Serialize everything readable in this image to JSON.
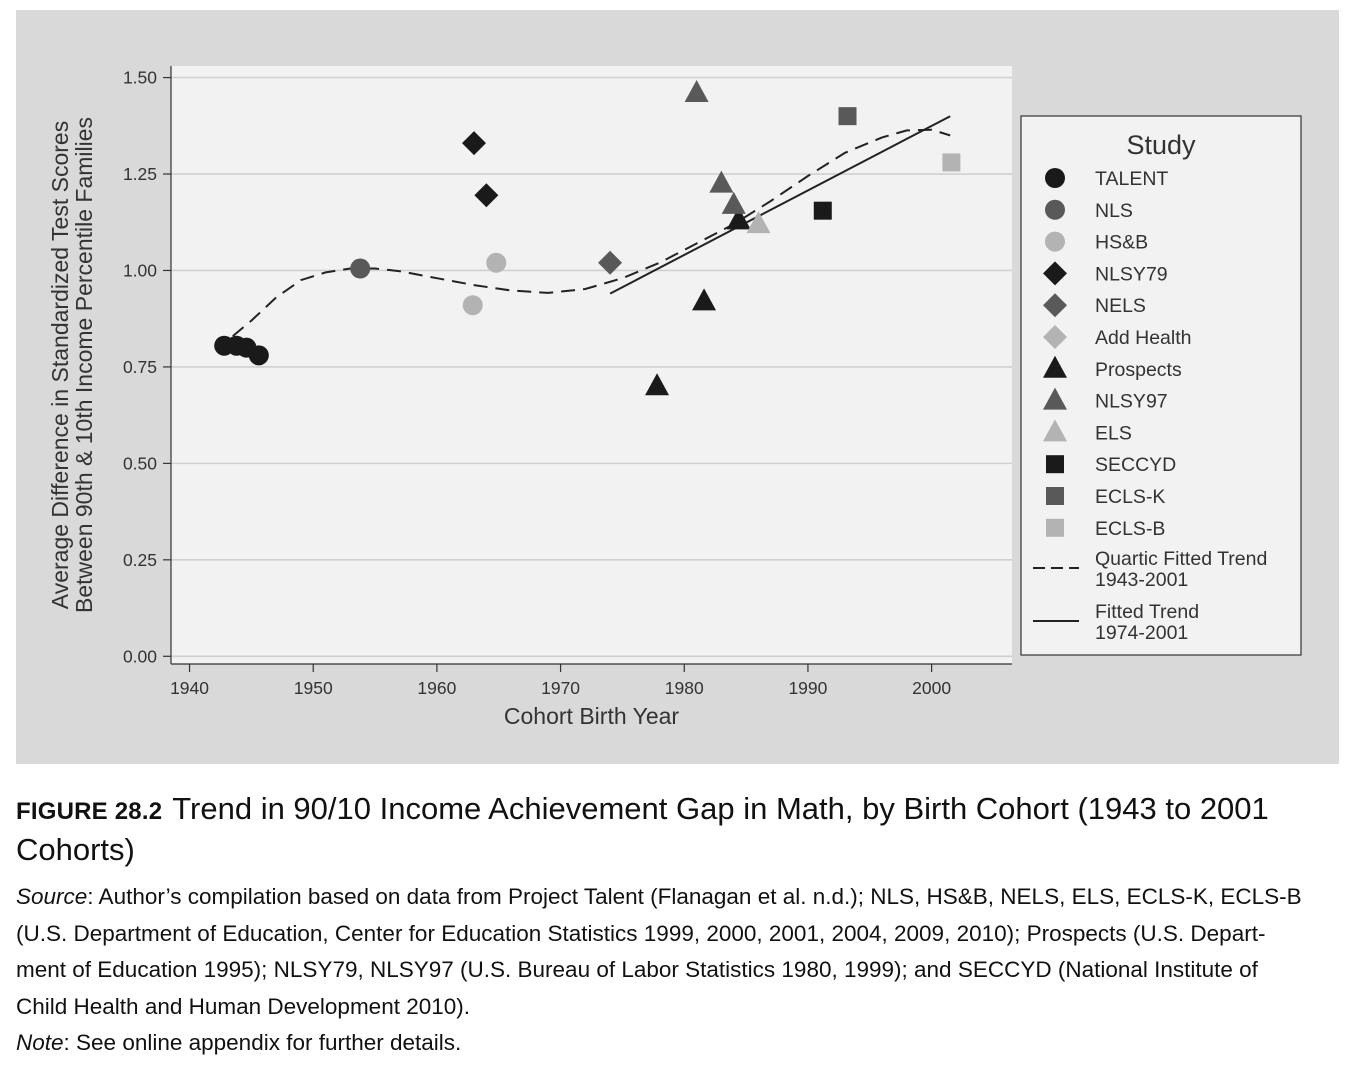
{
  "chart_data": {
    "type": "scatter",
    "xlabel": "Cohort Birth Year",
    "ylabel_line1": "Average Difference in Standardized Test Scores",
    "ylabel_line2": "Between 90th & 10th Income Percentile Families",
    "xlim": [
      1938.5,
      2006.5
    ],
    "ylim": [
      -0.02,
      1.53
    ],
    "x_ticks": [
      1940,
      1950,
      1960,
      1970,
      1980,
      1990,
      2000
    ],
    "y_ticks": [
      {
        "value": 0.0,
        "label": "0.00"
      },
      {
        "value": 0.25,
        "label": "0.25"
      },
      {
        "value": 0.5,
        "label": "0.50"
      },
      {
        "value": 0.75,
        "label": "0.75"
      },
      {
        "value": 1.0,
        "label": "1.00"
      },
      {
        "value": 1.25,
        "label": "1.25"
      },
      {
        "value": 1.5,
        "label": "1.50"
      }
    ],
    "grid": true,
    "legend": {
      "title": "Study",
      "placement": "right"
    },
    "series": [
      {
        "name": "TALENT",
        "marker": "circle",
        "color": "#1a1a1a",
        "points": [
          [
            1942.8,
            0.805
          ],
          [
            1943.8,
            0.805
          ],
          [
            1944.6,
            0.8
          ],
          [
            1945.6,
            0.78
          ]
        ]
      },
      {
        "name": "NLS",
        "marker": "circle",
        "color": "#595959",
        "points": [
          [
            1953.8,
            1.005
          ]
        ]
      },
      {
        "name": "HS&B",
        "marker": "circle",
        "color": "#b3b3b3",
        "points": [
          [
            1962.9,
            0.91
          ],
          [
            1964.8,
            1.02
          ]
        ]
      },
      {
        "name": "NLSY79",
        "marker": "diamond",
        "color": "#1a1a1a",
        "points": [
          [
            1963.0,
            1.33
          ],
          [
            1964.0,
            1.195
          ]
        ]
      },
      {
        "name": "NELS",
        "marker": "diamond",
        "color": "#595959",
        "points": [
          [
            1974.0,
            1.02
          ]
        ]
      },
      {
        "name": "Add Health",
        "marker": "diamond",
        "color": "#b3b3b3",
        "points": []
      },
      {
        "name": "Prospects",
        "marker": "triangle",
        "color": "#1a1a1a",
        "points": [
          [
            1977.8,
            0.7
          ],
          [
            1981.6,
            0.92
          ],
          [
            1984.4,
            1.13
          ]
        ]
      },
      {
        "name": "NLSY97",
        "marker": "triangle",
        "color": "#595959",
        "points": [
          [
            1981.0,
            1.46
          ],
          [
            1983.0,
            1.225
          ],
          [
            1984.0,
            1.17
          ]
        ]
      },
      {
        "name": "ELS",
        "marker": "triangle",
        "color": "#b3b3b3",
        "points": [
          [
            1986.0,
            1.12
          ]
        ]
      },
      {
        "name": "SECCYD",
        "marker": "square",
        "color": "#1a1a1a",
        "points": [
          [
            1991.2,
            1.155
          ]
        ]
      },
      {
        "name": "ECLS-K",
        "marker": "square",
        "color": "#595959",
        "points": [
          [
            1993.2,
            1.4
          ]
        ]
      },
      {
        "name": "ECLS-B",
        "marker": "square",
        "color": "#b3b3b3",
        "points": [
          [
            2001.6,
            1.28
          ]
        ]
      }
    ],
    "trend_lines": [
      {
        "name_line1": "Quartic Fitted Trend",
        "name_line2": "1943-2001",
        "style": "dashed",
        "points": [
          [
            1943.5,
            0.83
          ],
          [
            1945,
            0.87
          ],
          [
            1947,
            0.93
          ],
          [
            1949,
            0.975
          ],
          [
            1951,
            0.995
          ],
          [
            1953,
            1.005
          ],
          [
            1955,
            1.005
          ],
          [
            1957,
            0.998
          ],
          [
            1960,
            0.98
          ],
          [
            1963,
            0.962
          ],
          [
            1966,
            0.948
          ],
          [
            1969,
            0.942
          ],
          [
            1972,
            0.952
          ],
          [
            1975,
            0.98
          ],
          [
            1978,
            1.02
          ],
          [
            1981,
            1.07
          ],
          [
            1984,
            1.12
          ],
          [
            1987,
            1.18
          ],
          [
            1990,
            1.245
          ],
          [
            1993,
            1.305
          ],
          [
            1996,
            1.345
          ],
          [
            1998,
            1.363
          ],
          [
            2000,
            1.365
          ],
          [
            2001.5,
            1.35
          ]
        ]
      },
      {
        "name_line1": "Fitted Trend",
        "name_line2": "1974-2001",
        "style": "solid",
        "points": [
          [
            1974,
            0.94
          ],
          [
            2001.5,
            1.4
          ]
        ]
      }
    ]
  },
  "caption": {
    "label": "FIGURE 28.2",
    "title": "Trend in 90/10 Income Achievement Gap in Math, by Birth Cohort (1943 to 2001 Cohorts)",
    "source_label": "Source",
    "source_line1": ": Author’s compilation based on data from Project Talent (Flanagan et al. n.d.); NLS, HS&B, NELS, ELS, ECLS-K, ECLS-B",
    "source_line2": "(U.S. Department of Education, Center for Education Statistics 1999, 2000, 2001, 2004, 2009, 2010); Prospects (U.S. Depart-",
    "source_line3": "ment of Education 1995); NLSY79, NLSY97 (U.S. Bureau of Labor Statistics 1980, 1999); and SECCYD (National Institute of",
    "source_line4": "Child Health and Human Development 2010).",
    "note_label": "Note",
    "note_text": ": See online appendix for further details."
  }
}
